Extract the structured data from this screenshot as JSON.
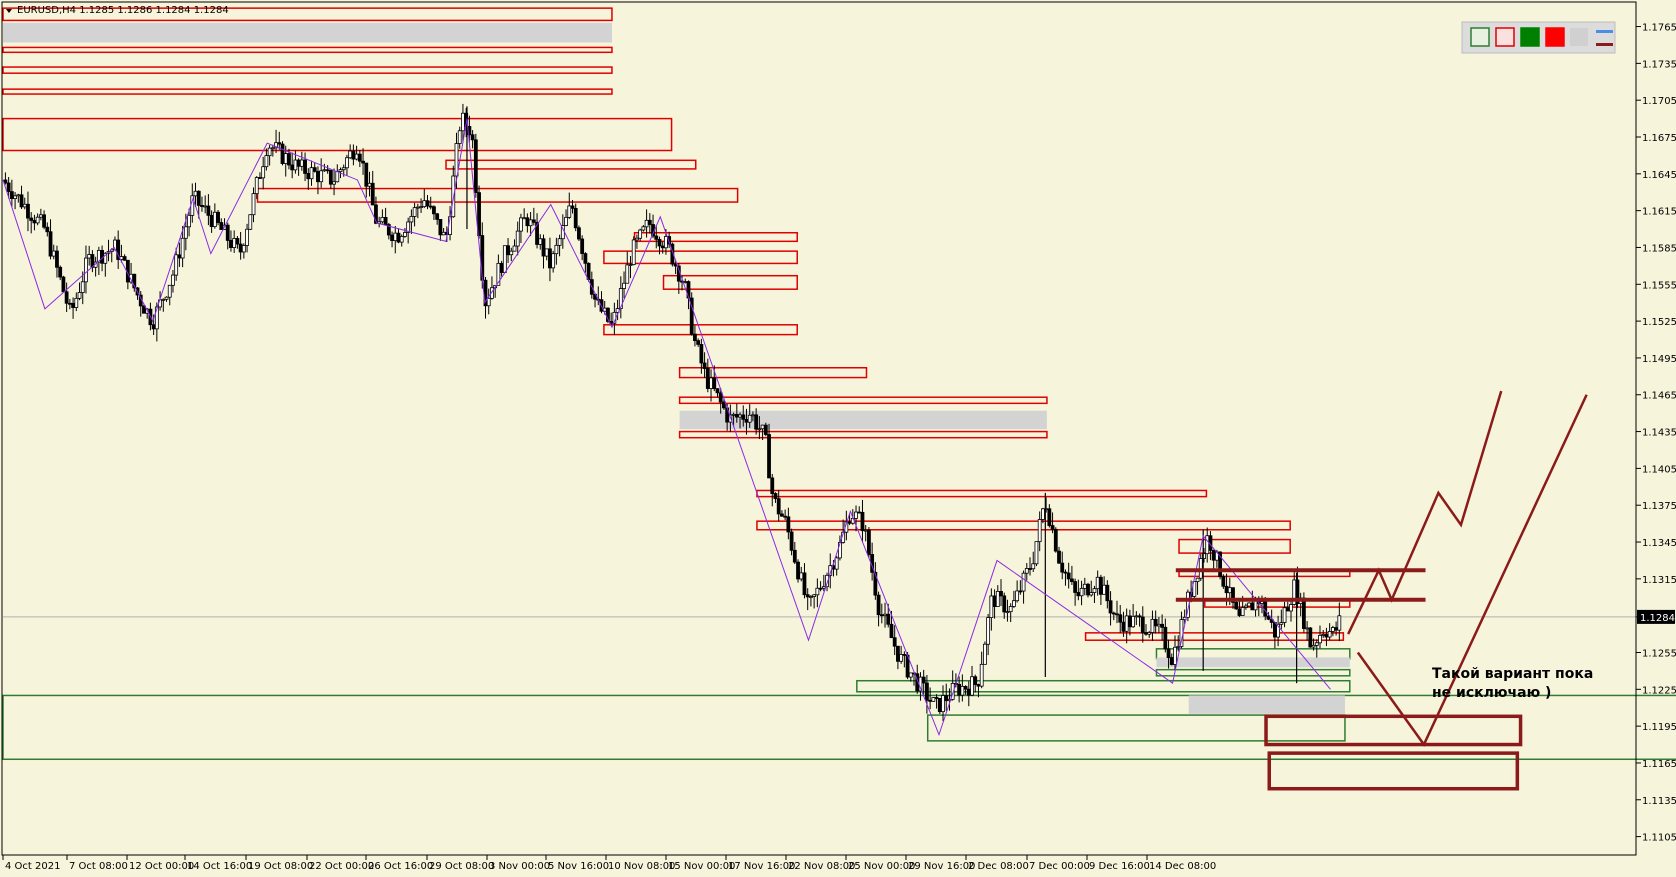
{
  "header": {
    "symbol_line": "EURUSD,H4  1.1285 1.1286 1.1284 1.1284"
  },
  "toolbar": {
    "swatches": [
      {
        "name": "swatch-green-outline",
        "fill": "#e8f0e0",
        "stroke": "#2e7d32"
      },
      {
        "name": "swatch-red-outline",
        "fill": "#fbe0e0",
        "stroke": "#e00000"
      },
      {
        "name": "swatch-green-fill",
        "fill": "#008000",
        "stroke": "#008000"
      },
      {
        "name": "swatch-red-fill",
        "fill": "#ff0000",
        "stroke": "#ff0000"
      }
    ]
  },
  "annotation": {
    "line1": "Такой вариант пока",
    "line2": "не исключаю )"
  },
  "colors": {
    "background": "#f7f4dc",
    "bull_candle": "#000000",
    "bear_candle": "#000000",
    "zigzag": "#8a2be2",
    "supply_zone": "#e00000",
    "demand_zone": "#2e7d32",
    "forecast": "#8b1a1a",
    "price_line": "#b0b0b0"
  },
  "chart_data": {
    "type": "candlestick",
    "symbol": "EURUSD",
    "timeframe": "H4",
    "last_price": "1.1284",
    "ylim": [
      1.109,
      1.1785
    ],
    "y_ticks": [
      "1.1765",
      "1.1735",
      "1.1705",
      "1.1675",
      "1.1645",
      "1.1615",
      "1.1585",
      "1.1555",
      "1.1525",
      "1.1495",
      "1.1465",
      "1.1435",
      "1.1405",
      "1.1375",
      "1.1345",
      "1.1315",
      "1.1284",
      "1.1255",
      "1.1225",
      "1.1195",
      "1.1165",
      "1.1135",
      "1.1105"
    ],
    "x_ticks": [
      "4 Oct 2021",
      "7 Oct 08:00",
      "12 Oct 00:00",
      "14 Oct 16:00",
      "19 Oct 08:00",
      "22 Oct 00:00",
      "26 Oct 16:00",
      "29 Oct 08:00",
      "3 Nov 00:00",
      "5 Nov 16:00",
      "10 Nov 08:00",
      "15 Nov 00:00",
      "17 Nov 16:00",
      "22 Nov 08:00",
      "25 Nov 00:00",
      "29 Nov 16:00",
      "2 Dec 08:00",
      "7 Dec 00:00",
      "9 Dec 16:00",
      "14 Dec 08:00"
    ],
    "x_range": [
      0,
      100
    ],
    "path_points": [
      [
        0.0,
        1.164
      ],
      [
        2.6,
        1.16
      ],
      [
        4.2,
        1.153
      ],
      [
        5.3,
        1.1575
      ],
      [
        7.0,
        1.1585
      ],
      [
        8.4,
        1.1545
      ],
      [
        9.3,
        1.1525
      ],
      [
        10.6,
        1.1565
      ],
      [
        11.8,
        1.1625
      ],
      [
        12.9,
        1.161
      ],
      [
        14.7,
        1.158
      ],
      [
        16.4,
        1.167
      ],
      [
        18.3,
        1.165
      ],
      [
        20.5,
        1.164
      ],
      [
        22.0,
        1.167
      ],
      [
        23.2,
        1.1605
      ],
      [
        24.5,
        1.1595
      ],
      [
        26.1,
        1.1625
      ],
      [
        27.5,
        1.159
      ],
      [
        28.4,
        1.169
      ],
      [
        29.1,
        1.168
      ],
      [
        29.9,
        1.154
      ],
      [
        31.2,
        1.158
      ],
      [
        32.5,
        1.161
      ],
      [
        34.0,
        1.157
      ],
      [
        35.3,
        1.162
      ],
      [
        36.8,
        1.154
      ],
      [
        37.8,
        1.152
      ],
      [
        39.0,
        1.158
      ],
      [
        40.1,
        1.1605
      ],
      [
        41.3,
        1.1585
      ],
      [
        42.3,
        1.1555
      ],
      [
        42.9,
        1.151
      ],
      [
        43.6,
        1.148
      ],
      [
        45.1,
        1.1445
      ],
      [
        46.4,
        1.145
      ],
      [
        47.3,
        1.143
      ],
      [
        47.8,
        1.138
      ],
      [
        48.6,
        1.136
      ],
      [
        50.0,
        1.129
      ],
      [
        51.9,
        1.134
      ],
      [
        52.6,
        1.137
      ],
      [
        53.4,
        1.136
      ],
      [
        54.4,
        1.129
      ],
      [
        55.7,
        1.125
      ],
      [
        56.8,
        1.123
      ],
      [
        57.9,
        1.121
      ],
      [
        59.1,
        1.1225
      ],
      [
        60.5,
        1.123
      ],
      [
        61.4,
        1.13
      ],
      [
        62.6,
        1.129
      ],
      [
        63.9,
        1.133
      ],
      [
        64.7,
        1.138
      ],
      [
        65.6,
        1.133
      ],
      [
        66.6,
        1.13
      ],
      [
        67.9,
        1.1315
      ],
      [
        69.2,
        1.128
      ],
      [
        70.6,
        1.128
      ],
      [
        71.9,
        1.127
      ],
      [
        72.6,
        1.125
      ],
      [
        73.6,
        1.13
      ],
      [
        74.8,
        1.135
      ],
      [
        75.6,
        1.132
      ],
      [
        76.7,
        1.128
      ],
      [
        77.9,
        1.13
      ],
      [
        79.0,
        1.127
      ],
      [
        80.2,
        1.131
      ],
      [
        81.2,
        1.126
      ],
      [
        82.0,
        1.1275
      ],
      [
        82.6,
        1.127
      ],
      [
        83.1,
        1.1284
      ]
    ],
    "zigzag": [
      [
        0,
        1.164
      ],
      [
        2.6,
        1.1535
      ],
      [
        6.9,
        1.1585
      ],
      [
        9.3,
        1.1525
      ],
      [
        11.8,
        1.1625
      ],
      [
        12.9,
        1.158
      ],
      [
        16.4,
        1.167
      ],
      [
        22.0,
        1.164
      ],
      [
        23.2,
        1.1605
      ],
      [
        27.5,
        1.159
      ],
      [
        28.8,
        1.169
      ],
      [
        29.9,
        1.154
      ],
      [
        34.0,
        1.162
      ],
      [
        37.8,
        1.152
      ],
      [
        40.8,
        1.161
      ],
      [
        50.0,
        1.1265
      ],
      [
        52.6,
        1.137
      ],
      [
        58.1,
        1.1188
      ],
      [
        61.7,
        1.133
      ],
      [
        72.6,
        1.123
      ],
      [
        74.5,
        1.135
      ],
      [
        82.4,
        1.1225
      ]
    ],
    "spikes": [
      [
        28.8,
        1.17,
        1.16
      ],
      [
        64.7,
        1.1385,
        1.1235
      ],
      [
        74.5,
        1.1355,
        1.124
      ],
      [
        80.3,
        1.132,
        1.123
      ]
    ],
    "supply_zones": [
      [
        0,
        37.8,
        1.178,
        1.177,
        0
      ],
      [
        0,
        37.8,
        1.1768,
        1.1752,
        1
      ],
      [
        0,
        37.8,
        1.1748,
        1.1744,
        0
      ],
      [
        0,
        37.8,
        1.1732,
        1.1727,
        0
      ],
      [
        0,
        37.8,
        1.1714,
        1.171,
        0
      ],
      [
        0,
        41.5,
        1.169,
        1.1664,
        0
      ],
      [
        27.5,
        43.0,
        1.1656,
        1.1649,
        0
      ],
      [
        15.8,
        45.6,
        1.1633,
        1.1622,
        0
      ],
      [
        39.2,
        49.3,
        1.1597,
        1.159,
        0
      ],
      [
        37.3,
        49.3,
        1.1582,
        1.1572,
        0
      ],
      [
        41.0,
        49.3,
        1.1562,
        1.1551,
        0
      ],
      [
        37.3,
        49.3,
        1.1522,
        1.1514,
        0
      ],
      [
        42.0,
        53.6,
        1.1487,
        1.1479,
        0
      ],
      [
        42.0,
        64.8,
        1.1463,
        1.1458,
        0
      ],
      [
        42.0,
        64.8,
        1.1452,
        1.1437,
        1
      ],
      [
        42.0,
        64.8,
        1.1435,
        1.143,
        0
      ],
      [
        46.8,
        74.7,
        1.1387,
        1.1382,
        0
      ],
      [
        46.8,
        79.9,
        1.1362,
        1.1355,
        0
      ],
      [
        73.0,
        79.9,
        1.1347,
        1.1336,
        0
      ],
      [
        73.0,
        83.6,
        1.1322,
        1.1317,
        0
      ],
      [
        74.6,
        83.6,
        1.1298,
        1.1292,
        0
      ],
      [
        67.2,
        83.2,
        1.1271,
        1.1265,
        0
      ]
    ],
    "demand_zones": [
      [
        71.6,
        83.6,
        1.1258,
        1.125,
        0
      ],
      [
        71.6,
        83.6,
        1.1251,
        1.1243,
        1
      ],
      [
        71.6,
        83.6,
        1.1241,
        1.1236,
        0
      ],
      [
        53.0,
        83.6,
        1.1232,
        1.1223,
        0
      ],
      [
        0,
        105.4,
        1.122,
        1.1168,
        0
      ],
      [
        73.6,
        83.3,
        1.122,
        1.1205,
        1
      ],
      [
        57.4,
        83.3,
        1.1204,
        1.1183,
        0
      ]
    ],
    "forecast_boxes": [
      [
        78.4,
        94.2,
        1.1203,
        1.118
      ],
      [
        78.6,
        94.0,
        1.1173,
        1.1144
      ]
    ],
    "forecast_levels": [
      [
        72.8,
        88.3,
        1.1322
      ],
      [
        72.8,
        88.3,
        1.1298
      ]
    ],
    "forecast_path_up": [
      [
        83.5,
        1.127
      ],
      [
        85.4,
        1.1322
      ],
      [
        86.2,
        1.1298
      ],
      [
        89.1,
        1.1385
      ],
      [
        90.5,
        1.1359
      ],
      [
        93.0,
        1.1468
      ]
    ],
    "forecast_path_down": [
      [
        84.1,
        1.1255
      ],
      [
        88.2,
        1.118
      ],
      [
        98.3,
        1.1465
      ]
    ]
  }
}
